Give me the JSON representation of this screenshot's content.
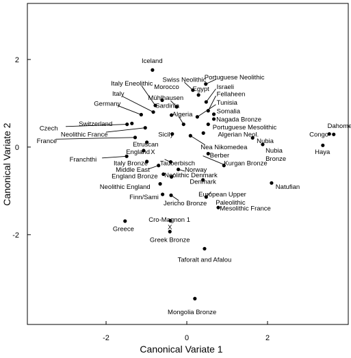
{
  "chart_data": {
    "type": "scatter",
    "xlabel": "Canonical Variate 1",
    "ylabel": "Canonical Variate 2",
    "xlim": [
      -3.95,
      4.0
    ],
    "ylim": [
      -4.05,
      3.28
    ],
    "xticks": [
      {
        "v": -2,
        "label": "-2"
      },
      {
        "v": 0,
        "label": "0"
      },
      {
        "v": 2,
        "label": "2"
      }
    ],
    "yticks": [
      {
        "v": -2,
        "label": "-2"
      },
      {
        "v": 0,
        "label": "0"
      },
      {
        "v": 2,
        "label": "2"
      }
    ],
    "grid": false,
    "legend": "none",
    "points": [
      {
        "label": "Iceland",
        "x": -0.85,
        "y": 1.76,
        "lx": -0.86,
        "ly": 1.97,
        "anchor": "middle"
      },
      {
        "label": "Portuguese Neolithic",
        "x": 0.47,
        "y": 1.44,
        "lx": 1.18,
        "ly": 1.59,
        "anchor": "middle"
      },
      {
        "label": "Swiss Neolithic",
        "x": 0.15,
        "y": 1.3,
        "lx": -0.06,
        "ly": 1.54,
        "anchor": "middle"
      },
      {
        "label": "Italy Eneolithic",
        "x": -0.78,
        "y": 0.95,
        "lx": -1.36,
        "ly": 1.45,
        "anchor": "middle"
      },
      {
        "label": "Morocco",
        "x": -0.61,
        "y": 1.07,
        "lx": -0.5,
        "ly": 1.37,
        "anchor": "middle"
      },
      {
        "label": "Egypt",
        "x": 0.29,
        "y": 1.19,
        "lx": 0.35,
        "ly": 1.33,
        "anchor": "middle"
      },
      {
        "label": "Israeli",
        "x": 0.48,
        "y": 1.03,
        "lx": 0.74,
        "ly": 1.37,
        "anchor": "start"
      },
      {
        "label": "Fellaheen",
        "x": 0.53,
        "y": 0.83,
        "lx": 0.74,
        "ly": 1.21,
        "anchor": "start"
      },
      {
        "label": "Italy",
        "x": -0.83,
        "y": 0.8,
        "lx": -1.7,
        "ly": 1.22,
        "anchor": "middle"
      },
      {
        "label": "Mühlhausen",
        "x": -0.25,
        "y": 0.92,
        "lx": -0.52,
        "ly": 1.12,
        "anchor": "middle"
      },
      {
        "label": "Tunisia",
        "x": 0.26,
        "y": 0.69,
        "lx": 0.74,
        "ly": 1.01,
        "anchor": "start"
      },
      {
        "label": "Sardinia",
        "x": -0.38,
        "y": 0.73,
        "lx": -0.48,
        "ly": 0.94,
        "anchor": "middle"
      },
      {
        "label": "Germany",
        "x": -1.13,
        "y": 0.74,
        "lx": -1.97,
        "ly": 0.99,
        "anchor": "middle"
      },
      {
        "label": "Somalia",
        "x": 0.67,
        "y": 0.75,
        "lx": 0.74,
        "ly": 0.82,
        "anchor": "start"
      },
      {
        "label": "Algeria",
        "x": -0.08,
        "y": 0.52,
        "lx": -0.36,
        "ly": 0.75,
        "anchor": "start"
      },
      {
        "label": "Nagada Bronze",
        "x": 0.67,
        "y": 0.64,
        "lx": 0.73,
        "ly": 0.63,
        "anchor": "start"
      },
      {
        "label": "Portuguese Mesolithic",
        "x": 0.53,
        "y": 0.52,
        "lx": 0.64,
        "ly": 0.45,
        "anchor": "start"
      },
      {
        "label": "Switzerland",
        "x": -1.36,
        "y": 0.54,
        "lx": -2.26,
        "ly": 0.53,
        "anchor": "middle"
      },
      {
        "label": "Czech",
        "x": -1.48,
        "y": 0.52,
        "lx": -3.65,
        "ly": 0.43,
        "anchor": "start"
      },
      {
        "label": "Neolithic France",
        "x": -1.03,
        "y": 0.44,
        "lx": -2.54,
        "ly": 0.29,
        "anchor": "middle"
      },
      {
        "label": "Sicily",
        "x": -0.36,
        "y": 0.3,
        "lx": -0.52,
        "ly": 0.29,
        "anchor": "middle"
      },
      {
        "label": "Algerian Neol.",
        "x": 0.41,
        "y": 0.32,
        "lx": 0.77,
        "ly": 0.29,
        "anchor": "start"
      },
      {
        "label": "France",
        "x": -1.28,
        "y": 0.22,
        "lx": -3.72,
        "ly": 0.14,
        "anchor": "start"
      },
      {
        "label": "Etruscan",
        "x": -0.99,
        "y": 0.11,
        "lx": -1.02,
        "ly": 0.06,
        "anchor": "middle"
      },
      {
        "label": "Nubia",
        "x": 1.63,
        "y": 0.21,
        "lx": 1.73,
        "ly": 0.14,
        "anchor": "start"
      },
      {
        "label": "Nea Nikomedea",
        "x": 0.09,
        "y": 0.26,
        "lx": 0.92,
        "ly": 0.0,
        "anchor": "middle"
      },
      {
        "label": "Nubia Bronze",
        "x": 1.88,
        "y": 0.06,
        "lx": 1.95,
        "ly": -0.08,
        "anchor": "start"
      },
      {
        "label": "England",
        "x": -1.07,
        "y": -0.08,
        "lx": -1.21,
        "ly": -0.11,
        "anchor": "middle"
      },
      {
        "label": "X",
        "x": -0.8,
        "y": -0.08,
        "lx": -0.84,
        "ly": -0.11,
        "anchor": "middle"
      },
      {
        "label": "Berber",
        "x": 0.53,
        "y": -0.15,
        "lx": 0.57,
        "ly": -0.19,
        "anchor": "start"
      },
      {
        "label": "Franchthi",
        "x": -1.49,
        "y": -0.21,
        "lx": -2.57,
        "ly": -0.28,
        "anchor": "middle"
      },
      {
        "label": "Italy Bronze",
        "x": -0.99,
        "y": -0.33,
        "lx": -1.39,
        "ly": -0.37,
        "anchor": "middle"
      },
      {
        "label": "Kurgan Bronze",
        "x": 0.92,
        "y": -0.42,
        "lx": 0.92,
        "ly": -0.37,
        "anchor": "start"
      },
      {
        "label": "Tauberbisch",
        "x": -0.4,
        "y": -0.34,
        "lx": -0.23,
        "ly": -0.37,
        "anchor": "middle"
      },
      {
        "label": "Middle East",
        "x": -0.7,
        "y": -0.42,
        "lx": -1.34,
        "ly": -0.52,
        "anchor": "middle"
      },
      {
        "label": "Norway",
        "x": -0.21,
        "y": -0.51,
        "lx": -0.05,
        "ly": -0.52,
        "anchor": "start"
      },
      {
        "label": "England Bronze",
        "x": -0.58,
        "y": -0.62,
        "lx": -1.29,
        "ly": -0.67,
        "anchor": "middle"
      },
      {
        "label": "Neolithic Denmark",
        "x": -0.38,
        "y": -0.68,
        "lx": 0.1,
        "ly": -0.64,
        "anchor": "middle"
      },
      {
        "label": "Denmark",
        "x": 0.4,
        "y": -0.75,
        "lx": 0.4,
        "ly": -0.79,
        "anchor": "middle"
      },
      {
        "label": "Neolithic England",
        "x": -0.66,
        "y": -0.84,
        "lx": -1.53,
        "ly": -0.91,
        "anchor": "middle"
      },
      {
        "label": "Natufian",
        "x": 2.1,
        "y": -0.82,
        "lx": 2.2,
        "ly": -0.91,
        "anchor": "start"
      },
      {
        "label": "European Upper Paleolithic",
        "x": 0.48,
        "y": -1.14,
        "lx": 0.88,
        "ly": -1.08,
        "anchor": "middle"
      },
      {
        "label": "Finn/Sami",
        "x": -0.6,
        "y": -1.08,
        "lx": -1.06,
        "ly": -1.14,
        "anchor": "middle"
      },
      {
        "label": "Jericho Bronze",
        "x": -0.39,
        "y": -1.1,
        "lx": -0.04,
        "ly": -1.28,
        "anchor": "middle"
      },
      {
        "label": "Mesolithic France",
        "x": 0.78,
        "y": -1.38,
        "lx": 0.82,
        "ly": -1.4,
        "anchor": "start"
      },
      {
        "label": "Greece",
        "x": -1.53,
        "y": -1.69,
        "lx": -1.57,
        "ly": -1.87,
        "anchor": "middle"
      },
      {
        "label": "Cro-Magnon 1",
        "x": -0.41,
        "y": -1.68,
        "lx": -0.43,
        "ly": -1.66,
        "anchor": "middle"
      },
      {
        "label": "X",
        "x": -0.42,
        "y": -1.84,
        "lx": -0.42,
        "ly": -1.83,
        "anchor": "middle"
      },
      {
        "label": "Greek Bronze",
        "x": -0.42,
        "y": -1.93,
        "lx": -0.42,
        "ly": -2.12,
        "anchor": "middle"
      },
      {
        "label": "Taforalt and Afalou",
        "x": 0.44,
        "y": -2.32,
        "lx": 0.44,
        "ly": -2.57,
        "anchor": "middle"
      },
      {
        "label": "Mongolia Bronze",
        "x": 0.2,
        "y": -3.46,
        "lx": 0.13,
        "ly": -3.77,
        "anchor": "middle"
      },
      {
        "label": "Dahomey",
        "x": 3.64,
        "y": 0.29,
        "lx": 3.83,
        "ly": 0.48,
        "anchor": "middle"
      },
      {
        "label": "Congo",
        "x": 3.53,
        "y": 0.3,
        "lx": 3.51,
        "ly": 0.29,
        "anchor": "end"
      },
      {
        "label": "Haya",
        "x": 3.37,
        "y": 0.04,
        "lx": 3.36,
        "ly": -0.11,
        "anchor": "middle"
      }
    ],
    "leaders": [
      {
        "p": "Portuguese Neolithic",
        "x1": 0.47,
        "y1": 1.44,
        "x2": 0.73,
        "y2": 1.55
      },
      {
        "p": "Swiss Neolithic",
        "x1": 0.15,
        "y1": 1.3,
        "x2": -0.06,
        "y2": 1.48
      },
      {
        "p": "Italy Eneolithic",
        "x1": -0.78,
        "y1": 0.95,
        "x2": -1.12,
        "y2": 1.4
      },
      {
        "p": "Israeli",
        "x1": 0.48,
        "y1": 1.03,
        "x2": 0.72,
        "y2": 1.33
      },
      {
        "p": "Fellaheen",
        "x1": 0.53,
        "y1": 0.83,
        "x2": 0.72,
        "y2": 1.17
      },
      {
        "p": "Italy",
        "x1": -0.83,
        "y1": 0.8,
        "x2": -1.6,
        "y2": 1.16
      },
      {
        "p": "Mühlhausen",
        "x1": -0.25,
        "y1": 0.92,
        "x2": -0.4,
        "y2": 1.06
      },
      {
        "p": "Tunisia",
        "x1": 0.26,
        "y1": 0.69,
        "x2": 0.72,
        "y2": 0.97
      },
      {
        "p": "Germany",
        "x1": -1.13,
        "y1": 0.74,
        "x2": -1.72,
        "y2": 0.95
      },
      {
        "p": "Algeria",
        "x1": -0.08,
        "y1": 0.52,
        "x2": -0.2,
        "y2": 0.7
      },
      {
        "p": "Czech",
        "x1": -1.48,
        "y1": 0.52,
        "x2": -3.0,
        "y2": 0.47
      },
      {
        "p": "Neolithic France",
        "x1": -1.03,
        "y1": 0.44,
        "x2": -2.0,
        "y2": 0.34
      },
      {
        "p": "France",
        "x1": -1.28,
        "y1": 0.22,
        "x2": -3.25,
        "y2": 0.18
      },
      {
        "p": "Nea Nikomedea",
        "x1": 0.09,
        "y1": 0.26,
        "x2": 0.45,
        "y2": 0.05
      },
      {
        "p": "Franchthi",
        "x1": -1.49,
        "y1": -0.21,
        "x2": -2.1,
        "y2": -0.25
      },
      {
        "p": "Kurgan Bronze",
        "x1": 0.4,
        "y1": -0.2,
        "x2": 0.92,
        "y2": -0.4
      },
      {
        "p": "Tauberbisch",
        "x1": -0.4,
        "y1": -0.34,
        "x2": -0.55,
        "y2": -0.28
      },
      {
        "p": "Middle East",
        "x1": -0.7,
        "y1": -0.42,
        "x2": -0.95,
        "y2": -0.5
      },
      {
        "p": "Norway",
        "x1": -0.21,
        "y1": -0.51,
        "x2": -0.05,
        "y2": -0.55
      },
      {
        "p": "Neolithic Denmark",
        "x1": -0.38,
        "y1": -0.68,
        "x2": -0.3,
        "y2": -0.6
      },
      {
        "p": "Jericho Bronze",
        "x1": -0.39,
        "y1": -1.1,
        "x2": -0.2,
        "y2": -1.22
      },
      {
        "p": "European Upper Paleolithic",
        "x1": 0.48,
        "y1": -1.14,
        "x2": 0.6,
        "y2": -1.02
      },
      {
        "p": "Mesolithic France",
        "x1": 0.78,
        "y1": -1.38,
        "x2": 0.82,
        "y2": -1.38
      }
    ]
  }
}
